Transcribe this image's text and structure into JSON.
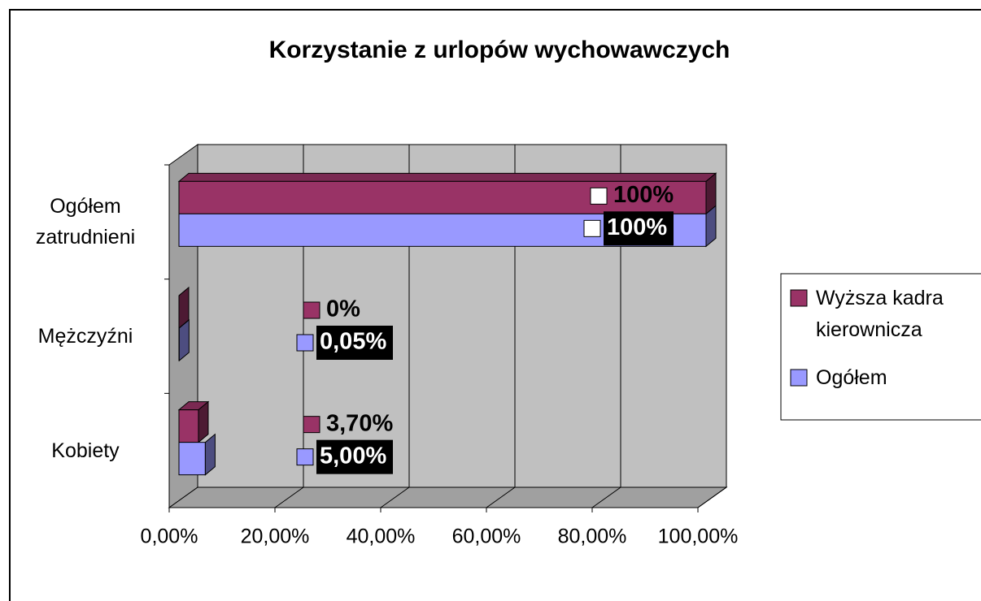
{
  "chart_data": {
    "type": "bar3d_horizontal",
    "title": "Korzystanie z urlopów wychowawczych",
    "categories": [
      "Kobiety",
      "Mężczyźni",
      "Ogółem zatrudnieni"
    ],
    "series": [
      {
        "name": "Wyższa kadra kierownicza",
        "color": "#993366",
        "values": [
          3.7,
          0,
          100
        ],
        "value_labels": [
          "3,70%",
          "0%",
          "100%"
        ]
      },
      {
        "name": "Ogółem",
        "color": "#9999ff",
        "values": [
          5,
          0.05,
          100
        ],
        "value_labels": [
          "5,00%",
          "0,05%",
          "100%"
        ]
      }
    ],
    "xlim": [
      0,
      100
    ],
    "xticks": [
      {
        "value": 0,
        "label": "0,00%"
      },
      {
        "value": 20,
        "label": "20,00%"
      },
      {
        "value": 40,
        "label": "40,00%"
      },
      {
        "value": 60,
        "label": "60,00%"
      },
      {
        "value": 80,
        "label": "80,00%"
      },
      {
        "value": 100,
        "label": "100,00%"
      }
    ],
    "grid": true,
    "legend": "right"
  }
}
